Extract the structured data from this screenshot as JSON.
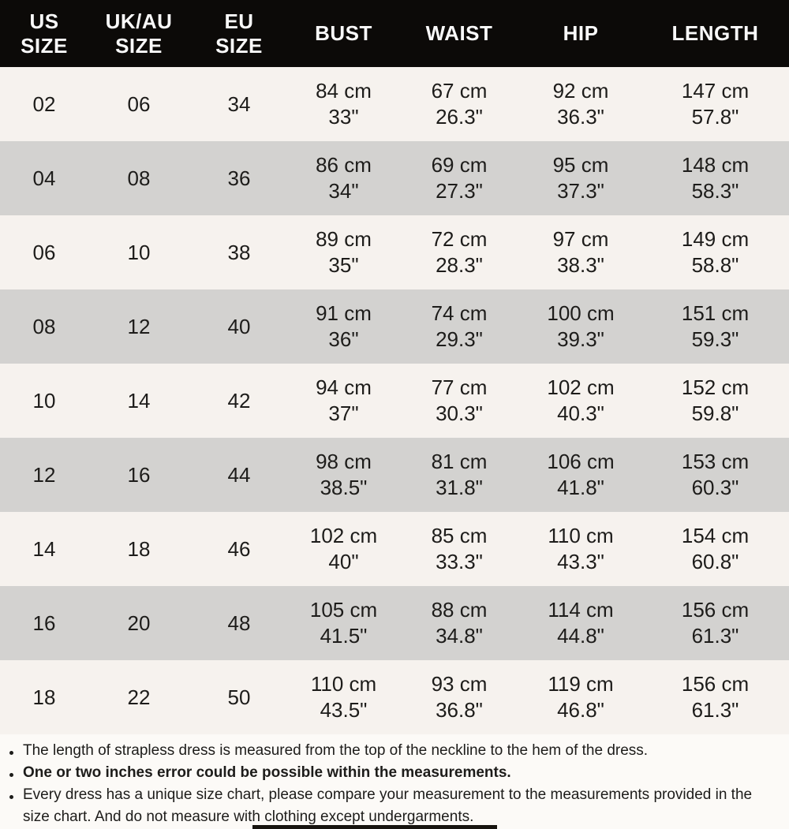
{
  "colors": {
    "header_bg": "#0c0a08",
    "header_text": "#f9f9f9",
    "row_odd": "#f6f2ee",
    "row_even": "#d3d2d0",
    "notes_bg": "#fcfaf7",
    "text": "#1d1c1a"
  },
  "chart_data": {
    "type": "table",
    "columns": [
      {
        "key": "us",
        "label": "US\nSIZE"
      },
      {
        "key": "uk_au",
        "label": "UK/AU\nSIZE"
      },
      {
        "key": "eu",
        "label": "EU\nSIZE"
      },
      {
        "key": "bust",
        "label": "BUST"
      },
      {
        "key": "waist",
        "label": "WAIST"
      },
      {
        "key": "hip",
        "label": "HIP"
      },
      {
        "key": "length",
        "label": "LENGTH"
      }
    ],
    "rows": [
      {
        "us": "02",
        "uk_au": "06",
        "eu": "34",
        "bust": "84 cm\n33\"",
        "waist": "67 cm\n26.3\"",
        "hip": "92 cm\n36.3\"",
        "length": "147 cm\n57.8\""
      },
      {
        "us": "04",
        "uk_au": "08",
        "eu": "36",
        "bust": "86 cm\n34\"",
        "waist": "69 cm\n27.3\"",
        "hip": "95 cm\n37.3\"",
        "length": "148 cm\n58.3\""
      },
      {
        "us": "06",
        "uk_au": "10",
        "eu": "38",
        "bust": "89 cm\n35\"",
        "waist": "72 cm\n28.3\"",
        "hip": "97 cm\n38.3\"",
        "length": "149 cm\n58.8\""
      },
      {
        "us": "08",
        "uk_au": "12",
        "eu": "40",
        "bust": "91 cm\n36\"",
        "waist": "74 cm\n29.3\"",
        "hip": "100 cm\n39.3\"",
        "length": "151 cm\n59.3\""
      },
      {
        "us": "10",
        "uk_au": "14",
        "eu": "42",
        "bust": "94 cm\n37\"",
        "waist": "77 cm\n30.3\"",
        "hip": "102 cm\n40.3\"",
        "length": "152 cm\n59.8\""
      },
      {
        "us": "12",
        "uk_au": "16",
        "eu": "44",
        "bust": "98 cm\n38.5\"",
        "waist": "81 cm\n31.8\"",
        "hip": "106 cm\n41.8\"",
        "length": "153 cm\n60.3\""
      },
      {
        "us": "14",
        "uk_au": "18",
        "eu": "46",
        "bust": "102 cm\n40\"",
        "waist": "85 cm\n33.3\"",
        "hip": "110 cm\n43.3\"",
        "length": "154 cm\n60.8\""
      },
      {
        "us": "16",
        "uk_au": "20",
        "eu": "48",
        "bust": "105 cm\n41.5\"",
        "waist": "88 cm\n34.8\"",
        "hip": "114 cm\n44.8\"",
        "length": "156 cm\n61.3\""
      },
      {
        "us": "18",
        "uk_au": "22",
        "eu": "50",
        "bust": "110 cm\n43.5\"",
        "waist": "93 cm\n36.8\"",
        "hip": "119 cm\n46.8\"",
        "length": "156 cm\n61.3\""
      }
    ]
  },
  "notes": [
    {
      "bold": false,
      "text": "The length of strapless dress is measured from the top of the neckline to the hem of the dress."
    },
    {
      "bold": true,
      "text": "One or two inches error could be possible within the measurements."
    },
    {
      "bold": false,
      "text": "Every dress has a unique size chart, please compare your measurement to the measurements provided in the size chart. And do not measure with clothing except undergarments."
    }
  ]
}
